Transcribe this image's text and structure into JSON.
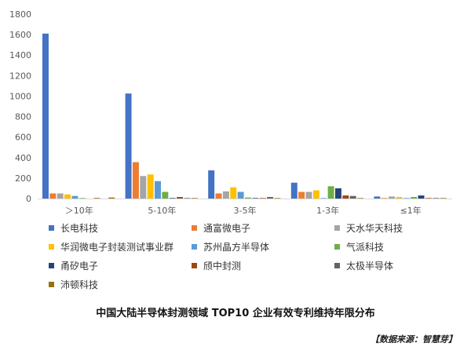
{
  "chart_data": {
    "type": "bar",
    "title": "中国大陆半导体封测领域 TOP10 企业有效专利维持年限分布",
    "xlabel": "",
    "ylabel": "",
    "ylim": [
      0,
      1800
    ],
    "yticks": [
      0,
      200,
      400,
      600,
      800,
      1000,
      1200,
      1400,
      1600,
      1800
    ],
    "grid": false,
    "legend_position": "bottom",
    "categories": [
      "＞10年",
      "5-10年",
      "3-5年",
      "1-3年",
      "≤1年"
    ],
    "series": [
      {
        "name": "长电科技",
        "color": "#4472c4",
        "values": [
          1610,
          1025,
          275,
          155,
          20
        ]
      },
      {
        "name": "通富微电子",
        "color": "#ed7d31",
        "values": [
          50,
          355,
          50,
          65,
          5
        ]
      },
      {
        "name": "天水华天科技",
        "color": "#a5a5a5",
        "values": [
          50,
          220,
          70,
          65,
          20
        ]
      },
      {
        "name": "华润微电子封装测试事业群",
        "color": "#ffc000",
        "values": [
          40,
          235,
          110,
          80,
          15
        ]
      },
      {
        "name": "苏州晶方半导体",
        "color": "#5b9bd5",
        "values": [
          25,
          170,
          65,
          5,
          5
        ]
      },
      {
        "name": "气派科技",
        "color": "#70ad47",
        "values": [
          5,
          65,
          10,
          120,
          15
        ]
      },
      {
        "name": "甬矽电子",
        "color": "#264478",
        "values": [
          0,
          5,
          5,
          100,
          30
        ]
      },
      {
        "name": "颀中封测",
        "color": "#9e480e",
        "values": [
          5,
          15,
          5,
          30,
          5
        ]
      },
      {
        "name": "太极半导体",
        "color": "#636363",
        "values": [
          0,
          5,
          15,
          25,
          5
        ]
      },
      {
        "name": "沛顿科技",
        "color": "#997300",
        "values": [
          10,
          5,
          5,
          5,
          5
        ]
      }
    ]
  },
  "source_note": "【数据来源：智慧芽】"
}
